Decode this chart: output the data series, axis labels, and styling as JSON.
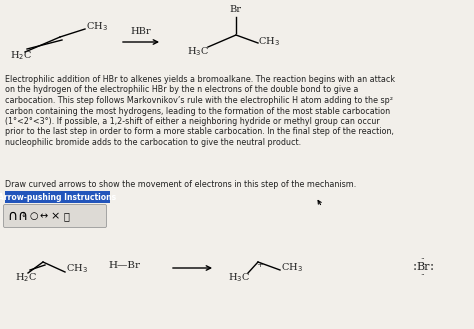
{
  "bg_color": "#f2efea",
  "body_text_lines": [
    "Electrophilic addition of HBr to alkenes yields a bromoalkane. The reaction begins with an attack",
    "on the hydrogen of the electrophilic HBr by the n electrons of the double bond to give a",
    "carbocation. This step follows Markovnikov’s rule with the electrophilic H atom adding to the sp²",
    "carbon containing the most hydrogens, leading to the formation of the most stable carbocation",
    "(1°<2°<3°). If possible, a 1,2-shift of either a neighboring hydride or methyl group can occur",
    "prior to the last step in order to form a more stable carbocation. In the final step of the reaction,",
    "nucleophilic bromide adds to the carbocation to give the neutral product."
  ],
  "draw_text": "Draw curved arrows to show the movement of electrons in this step of the mechanism.",
  "btn_color": "#2255bb",
  "btn_text": "Arrow-pushing Instructions",
  "toolbar_bg": "#e0ddd8",
  "text_color": "#222222"
}
